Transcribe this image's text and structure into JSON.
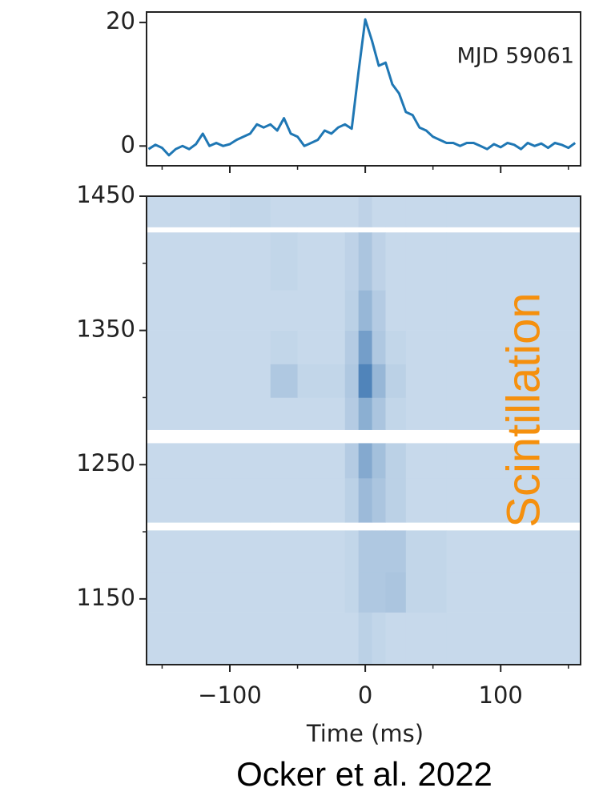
{
  "chart_data": [
    {
      "type": "line",
      "annotation": "MJD 59061",
      "x": [
        -160,
        -155,
        -150,
        -145,
        -140,
        -135,
        -130,
        -125,
        -120,
        -115,
        -110,
        -105,
        -100,
        -95,
        -90,
        -85,
        -80,
        -75,
        -70,
        -65,
        -60,
        -55,
        -50,
        -45,
        -40,
        -35,
        -30,
        -25,
        -20,
        -15,
        -10,
        -5,
        0,
        5,
        10,
        15,
        20,
        25,
        30,
        35,
        40,
        45,
        50,
        55,
        60,
        65,
        70,
        75,
        80,
        85,
        90,
        95,
        100,
        105,
        110,
        115,
        120,
        125,
        130,
        135,
        140,
        145,
        150,
        155
      ],
      "series": [
        {
          "color": "#1f77b4",
          "values": [
            -0.5,
            0.2,
            -0.3,
            -1.5,
            -0.5,
            0,
            -0.5,
            0.3,
            2,
            0,
            0.5,
            0,
            0.3,
            1,
            1.5,
            2,
            3.5,
            3,
            3.5,
            2.5,
            4.5,
            2,
            1.5,
            0,
            0.5,
            1,
            2.5,
            2,
            3,
            3.5,
            2.8,
            12,
            20.5,
            17,
            13,
            13.5,
            10,
            8.5,
            5.5,
            5,
            3,
            2.5,
            1.5,
            1,
            0.5,
            0.5,
            0,
            0.5,
            0.5,
            0,
            -0.5,
            0.3,
            -0.2,
            0.5,
            0.2,
            -0.5,
            0.5,
            0,
            0.4,
            -0.3,
            0.5,
            0.2,
            -0.3,
            0.5
          ]
        }
      ],
      "xlim": [
        -161.5,
        159
      ],
      "ylim": [
        -3.2,
        21.7
      ],
      "xticks": [
        -100,
        0,
        100
      ],
      "xminor_ticks": [
        -150,
        -50,
        50,
        150
      ],
      "yticks": [
        0,
        20
      ]
    },
    {
      "type": "heatmap",
      "xlabel": "Time (ms)",
      "annotation": "Scintillation",
      "annotation_color": "#f5900e",
      "x_edges": [
        -161.5,
        -100,
        -70,
        -50,
        -15,
        -5,
        5,
        15,
        30,
        60,
        100,
        159
      ],
      "y_edges": [
        1101,
        1140,
        1170,
        1201,
        1207,
        1240,
        1266,
        1276,
        1300,
        1325,
        1350,
        1380,
        1423,
        1427,
        1450
      ],
      "z": [
        [
          0.2,
          0.2,
          0.2,
          0.2,
          0.2,
          0.25,
          0.22,
          0.2,
          0.2,
          0.2,
          0.2
        ],
        [
          0.2,
          0.2,
          0.2,
          0.2,
          0.22,
          0.3,
          0.3,
          0.32,
          0.22,
          0.2,
          0.2
        ],
        [
          0.2,
          0.2,
          0.2,
          0.2,
          0.22,
          0.3,
          0.3,
          0.3,
          0.22,
          0.2,
          0.2
        ],
        [
          null,
          null,
          null,
          null,
          null,
          null,
          null,
          null,
          null,
          null,
          null
        ],
        [
          0.2,
          0.2,
          0.2,
          0.2,
          0.25,
          0.38,
          0.32,
          0.25,
          0.2,
          0.2,
          0.2
        ],
        [
          0.2,
          0.2,
          0.2,
          0.2,
          0.28,
          0.48,
          0.35,
          0.25,
          0.2,
          0.2,
          0.2
        ],
        [
          null,
          null,
          null,
          null,
          null,
          null,
          null,
          null,
          null,
          null,
          null
        ],
        [
          0.2,
          0.2,
          0.2,
          0.2,
          0.28,
          0.45,
          0.32,
          0.22,
          0.2,
          0.2,
          0.2
        ],
        [
          0.2,
          0.2,
          0.3,
          0.22,
          0.3,
          0.7,
          0.4,
          0.25,
          0.2,
          0.2,
          0.2
        ],
        [
          0.2,
          0.2,
          0.22,
          0.2,
          0.28,
          0.55,
          0.3,
          0.22,
          0.2,
          0.2,
          0.2
        ],
        [
          0.2,
          0.2,
          0.2,
          0.2,
          0.25,
          0.4,
          0.28,
          0.2,
          0.2,
          0.2,
          0.2
        ],
        [
          0.2,
          0.2,
          0.22,
          0.2,
          0.24,
          0.32,
          0.24,
          0.2,
          0.2,
          0.2,
          0.2
        ],
        [
          null,
          null,
          null,
          null,
          null,
          null,
          null,
          null,
          null,
          null,
          null
        ],
        [
          0.2,
          0.22,
          0.2,
          0.2,
          0.2,
          0.24,
          0.2,
          0.2,
          0.2,
          0.2,
          0.2
        ]
      ],
      "zlim": [
        0,
        1
      ],
      "colormap": [
        "#f7fbff",
        "#08519c"
      ],
      "xlim": [
        -161.5,
        159
      ],
      "ylim": [
        1101,
        1450
      ],
      "xticks": [
        {
          "value": -100,
          "label": "−100"
        },
        0,
        100
      ],
      "xminor_ticks": [
        -150,
        -50,
        50,
        150
      ],
      "yticks": [
        1150,
        1250,
        1350,
        1450
      ],
      "yminor_ticks": [
        1200,
        1300,
        1400
      ]
    }
  ],
  "caption": "Ocker et al. 2022"
}
